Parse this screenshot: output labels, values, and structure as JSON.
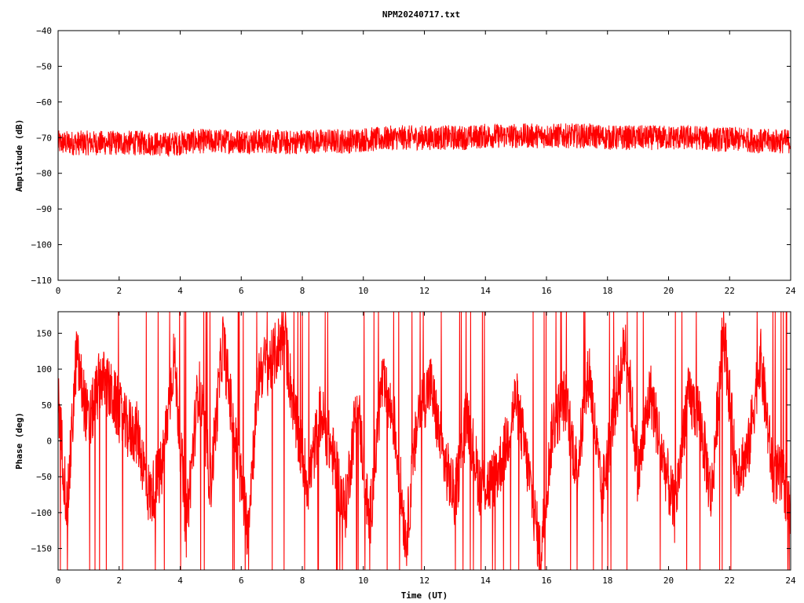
{
  "chart_data": [
    {
      "type": "line",
      "title": "NPM20240717.txt",
      "xlabel": "",
      "ylabel": "Amplitude (dB)",
      "xlim": [
        0,
        24
      ],
      "ylim": [
        -110,
        -40
      ],
      "x_ticks": [
        0,
        2,
        4,
        6,
        8,
        10,
        12,
        14,
        16,
        18,
        20,
        22,
        24
      ],
      "y_ticks": [
        -110,
        -100,
        -90,
        -80,
        -70,
        -60,
        -50,
        -40
      ],
      "x_tick_labels": [
        "0",
        "2",
        "4",
        "6",
        "8",
        "10",
        "12",
        "14",
        "16",
        "18",
        "20",
        "22",
        "24"
      ],
      "y_tick_labels": [
        "−110",
        "−100",
        "−90",
        "−80",
        "−70",
        "−60",
        "−50",
        "−40"
      ],
      "grid": false,
      "color": "#ff0000",
      "series": [
        {
          "x": [
            0,
            0.5,
            1,
            1.5,
            2,
            2.5,
            3,
            3.5,
            4,
            4.5,
            5,
            5.5,
            6,
            6.5,
            7,
            7.5,
            8,
            8.5,
            9,
            9.5,
            10,
            10.5,
            11,
            11.5,
            12,
            12.5,
            13,
            13.5,
            14,
            14.5,
            15,
            15.5,
            16,
            16.5,
            17,
            17.5,
            18,
            18.5,
            19,
            19.5,
            20,
            20.5,
            21,
            21.5,
            22,
            22.5,
            23,
            23.5,
            24
          ],
          "y": [
            -71.5,
            -71.5,
            -71.5,
            -71.5,
            -71.5,
            -71.5,
            -71.5,
            -72,
            -71.5,
            -71,
            -71,
            -71,
            -71,
            -71,
            -71,
            -71.5,
            -71,
            -71,
            -71,
            -71,
            -70.5,
            -70.5,
            -70,
            -70,
            -70,
            -70,
            -70,
            -70,
            -69.5,
            -69.5,
            -69.5,
            -69.5,
            -69.5,
            -69.5,
            -69.5,
            -69.5,
            -70,
            -70,
            -70,
            -70,
            -70,
            -70,
            -70,
            -70.5,
            -70.5,
            -70.5,
            -71,
            -71,
            -71
          ],
          "spread": 3.5
        }
      ]
    },
    {
      "type": "line",
      "title": "",
      "xlabel": "Time (UT)",
      "ylabel": "Phase (deg)",
      "xlim": [
        0,
        24
      ],
      "ylim": [
        -180,
        180
      ],
      "x_ticks": [
        0,
        2,
        4,
        6,
        8,
        10,
        12,
        14,
        16,
        18,
        20,
        22,
        24
      ],
      "y_ticks": [
        -150,
        -100,
        -50,
        0,
        50,
        100,
        150
      ],
      "x_tick_labels": [
        "0",
        "2",
        "4",
        "6",
        "8",
        "10",
        "12",
        "14",
        "16",
        "18",
        "20",
        "22",
        "24"
      ],
      "y_tick_labels": [
        "−150",
        "−100",
        "−50",
        "0",
        "50",
        "100",
        "150"
      ],
      "grid": false,
      "color": "#ff0000",
      "series": [
        {
          "x": [
            0,
            0.3,
            0.6,
            1,
            1.4,
            1.8,
            2.2,
            2.6,
            3,
            3.4,
            3.8,
            4.2,
            4.6,
            5,
            5.4,
            5.8,
            6.2,
            6.6,
            7,
            7.4,
            7.8,
            8.2,
            8.6,
            9,
            9.4,
            9.8,
            10.2,
            10.6,
            11,
            11.4,
            11.8,
            12.2,
            12.6,
            13,
            13.4,
            13.8,
            14.2,
            14.6,
            15,
            15.4,
            15.8,
            16.2,
            16.6,
            17,
            17.4,
            17.8,
            18.2,
            18.6,
            19,
            19.4,
            19.8,
            20.2,
            20.6,
            21,
            21.4,
            21.8,
            22.2,
            22.6,
            23,
            23.4,
            23.8,
            24
          ],
          "y": [
            60,
            -100,
            120,
            20,
            90,
            60,
            20,
            10,
            -80,
            -40,
            120,
            -120,
            80,
            -60,
            140,
            0,
            -120,
            100,
            110,
            150,
            20,
            -60,
            40,
            -20,
            -100,
            60,
            -120,
            80,
            30,
            -140,
            40,
            80,
            -20,
            -80,
            40,
            -60,
            -60,
            -20,
            60,
            -40,
            -160,
            20,
            60,
            -40,
            100,
            -80,
            40,
            140,
            -50,
            70,
            -20,
            -100,
            60,
            40,
            -80,
            160,
            -40,
            -20,
            120,
            -40,
            -60,
            -100
          ],
          "spread": 45
        }
      ]
    }
  ]
}
